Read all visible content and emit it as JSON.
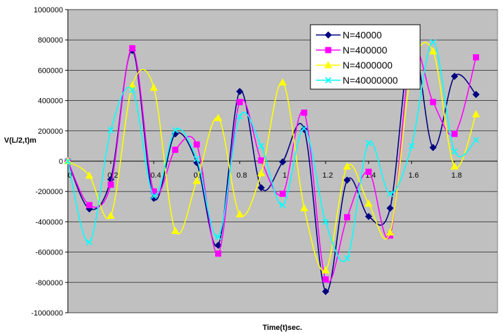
{
  "chart_data": {
    "type": "line",
    "title": "",
    "xlabel": "Time(t)sec.",
    "ylabel": "V(L/2,t)m",
    "xlim": [
      0,
      2
    ],
    "ylim": [
      -1000000,
      1000000
    ],
    "x_ticks": [
      0,
      0.2,
      0.4,
      0.6,
      0.8,
      1,
      1.2,
      1.4,
      1.6,
      1.8
    ],
    "x_tick_labels": [
      "0",
      "0.2",
      "0.4",
      "0.6",
      "0.8",
      "1",
      "1.2",
      "1.4",
      "1.6",
      "1.8"
    ],
    "y_ticks": [
      -1000000,
      -800000,
      -600000,
      -400000,
      -200000,
      0,
      200000,
      400000,
      600000,
      800000,
      1000000
    ],
    "y_tick_labels": [
      "-1000000",
      "-800000",
      "-600000",
      "-400000",
      "-200000",
      "0",
      "200000",
      "400000",
      "600000",
      "800000",
      "1000000"
    ],
    "grid": true,
    "plot_background": "#c0c0c0",
    "legend_position": "top-right",
    "x": [
      0,
      0.1,
      0.2,
      0.3,
      0.4,
      0.5,
      0.6,
      0.7,
      0.8,
      0.9,
      1.0,
      1.1,
      1.2,
      1.3,
      1.4,
      1.5,
      1.6,
      1.7,
      1.8,
      1.9
    ],
    "series": [
      {
        "name": "N=40000",
        "color": "#000080",
        "marker": "diamond",
        "values": [
          0,
          -315000,
          -120000,
          730000,
          -245000,
          180000,
          -10000,
          -555000,
          460000,
          -175000,
          -5000,
          210000,
          -860000,
          -125000,
          -365000,
          -310000,
          790000,
          90000,
          560000,
          440000
        ]
      },
      {
        "name": "N=400000",
        "color": "#ff00ff",
        "marker": "square",
        "values": [
          0,
          -290000,
          -155000,
          745000,
          -200000,
          75000,
          110000,
          -610000,
          390000,
          5000,
          -215000,
          320000,
          -780000,
          -370000,
          -70000,
          -490000,
          720000,
          390000,
          180000,
          685000
        ]
      },
      {
        "name": "N=4000000",
        "color": "#ffff00",
        "marker": "triangle",
        "values": [
          0,
          -95000,
          -360000,
          500000,
          485000,
          -460000,
          -130000,
          285000,
          -350000,
          -80000,
          520000,
          -310000,
          -720000,
          -35000,
          -280000,
          -470000,
          595000,
          725000,
          -35000,
          310000
        ]
      },
      {
        "name": "N=40000000",
        "color": "#00ffff",
        "marker": "x",
        "values": [
          0,
          -535000,
          205000,
          470000,
          -230000,
          205000,
          15000,
          -500000,
          295000,
          100000,
          -290000,
          215000,
          -400000,
          -640000,
          120000,
          -215000,
          100000,
          785000,
          65000,
          140000
        ]
      }
    ]
  }
}
